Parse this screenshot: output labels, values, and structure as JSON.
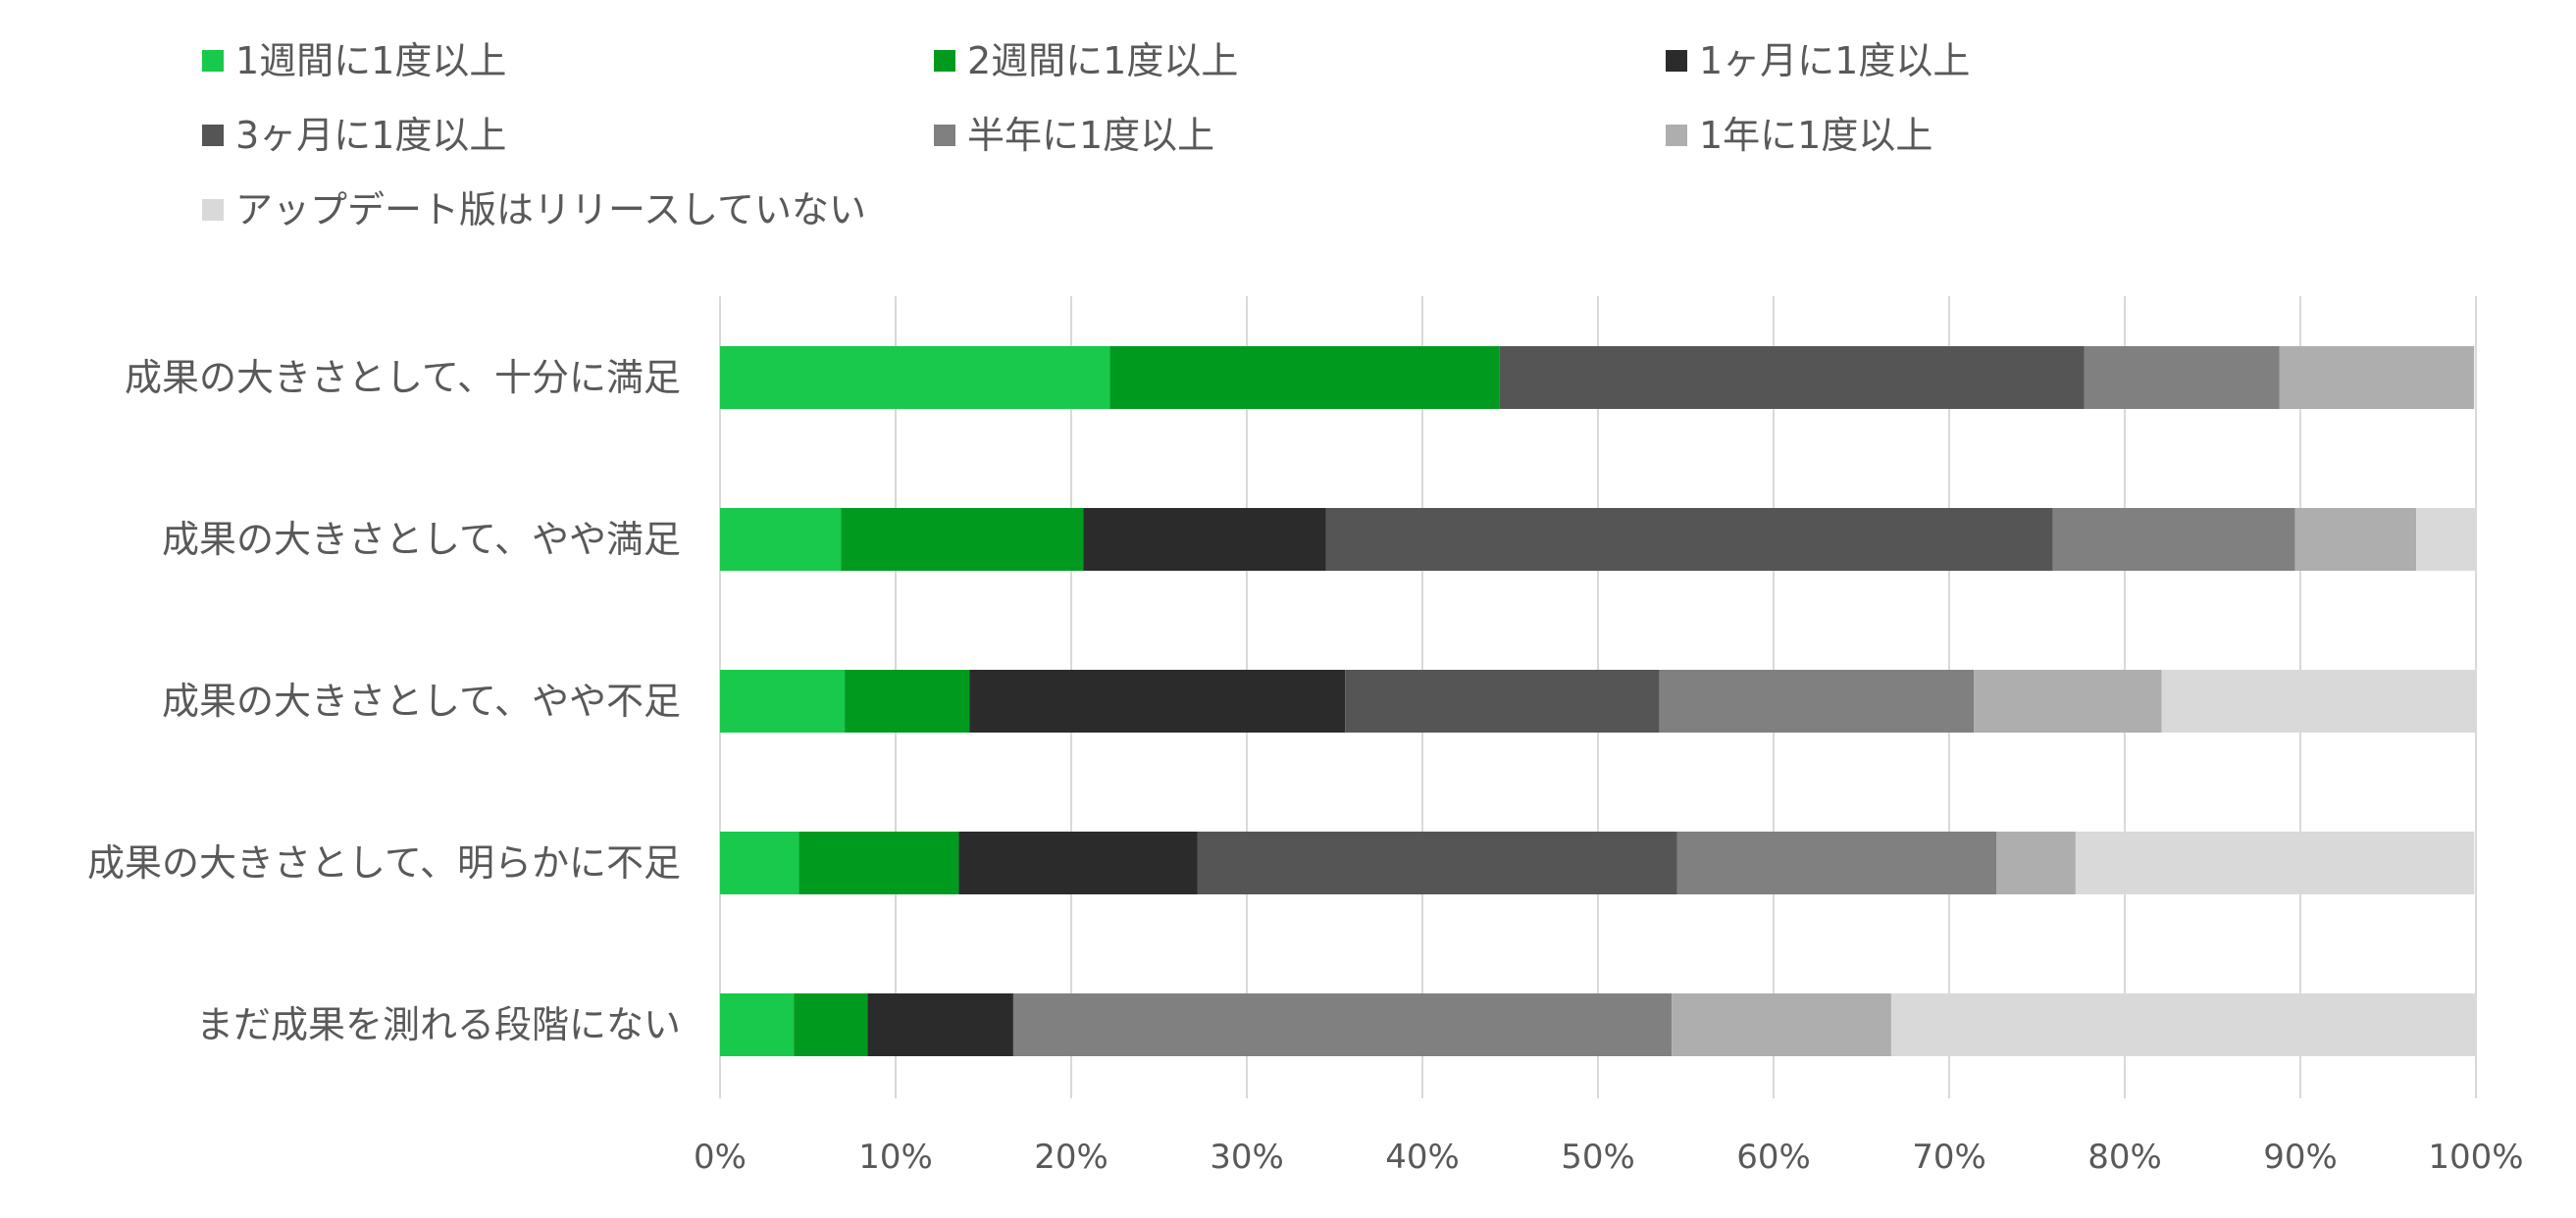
{
  "chart_data": {
    "type": "bar",
    "orientation": "horizontal",
    "stacked": "percent",
    "categories": [
      "成果の大きさとして、十分に満足",
      "成果の大きさとして、やや満足",
      "成果の大きさとして、やや不足",
      "成果の大きさとして、明らかに不足",
      "まだ成果を測れる段階にない"
    ],
    "series": [
      {
        "name": "1週間に1度以上",
        "color": "#18c94c",
        "values": [
          22.2,
          6.9,
          7.1,
          4.5,
          4.2
        ]
      },
      {
        "name": "2週間に1度以上",
        "color": "#009a1f",
        "values": [
          22.2,
          13.8,
          7.1,
          9.1,
          4.2
        ]
      },
      {
        "name": "1ヶ月に1度以上",
        "color": "#2b2b2b",
        "values": [
          0,
          13.8,
          21.4,
          13.6,
          8.3
        ]
      },
      {
        "name": "3ヶ月に1度以上",
        "color": "#555555",
        "values": [
          33.3,
          41.4,
          17.9,
          27.3,
          0
        ]
      },
      {
        "name": "半年に1度以上",
        "color": "#808080",
        "values": [
          11.1,
          13.8,
          17.9,
          18.2,
          37.5
        ]
      },
      {
        "name": "1年に1度以上",
        "color": "#aeaeae",
        "values": [
          11.1,
          6.9,
          10.7,
          4.5,
          12.5
        ]
      },
      {
        "name": "アップデート版はリリースしていない",
        "color": "#d9d9d9",
        "values": [
          0,
          3.4,
          17.9,
          22.7,
          33.3
        ]
      }
    ],
    "xlim": [
      0,
      100
    ],
    "x_ticks": [
      "0%",
      "10%",
      "20%",
      "30%",
      "40%",
      "50%",
      "60%",
      "70%",
      "80%",
      "90%",
      "100%"
    ],
    "grid": "vertical",
    "legend_position": "top",
    "title": "",
    "xlabel": "",
    "ylabel": ""
  }
}
